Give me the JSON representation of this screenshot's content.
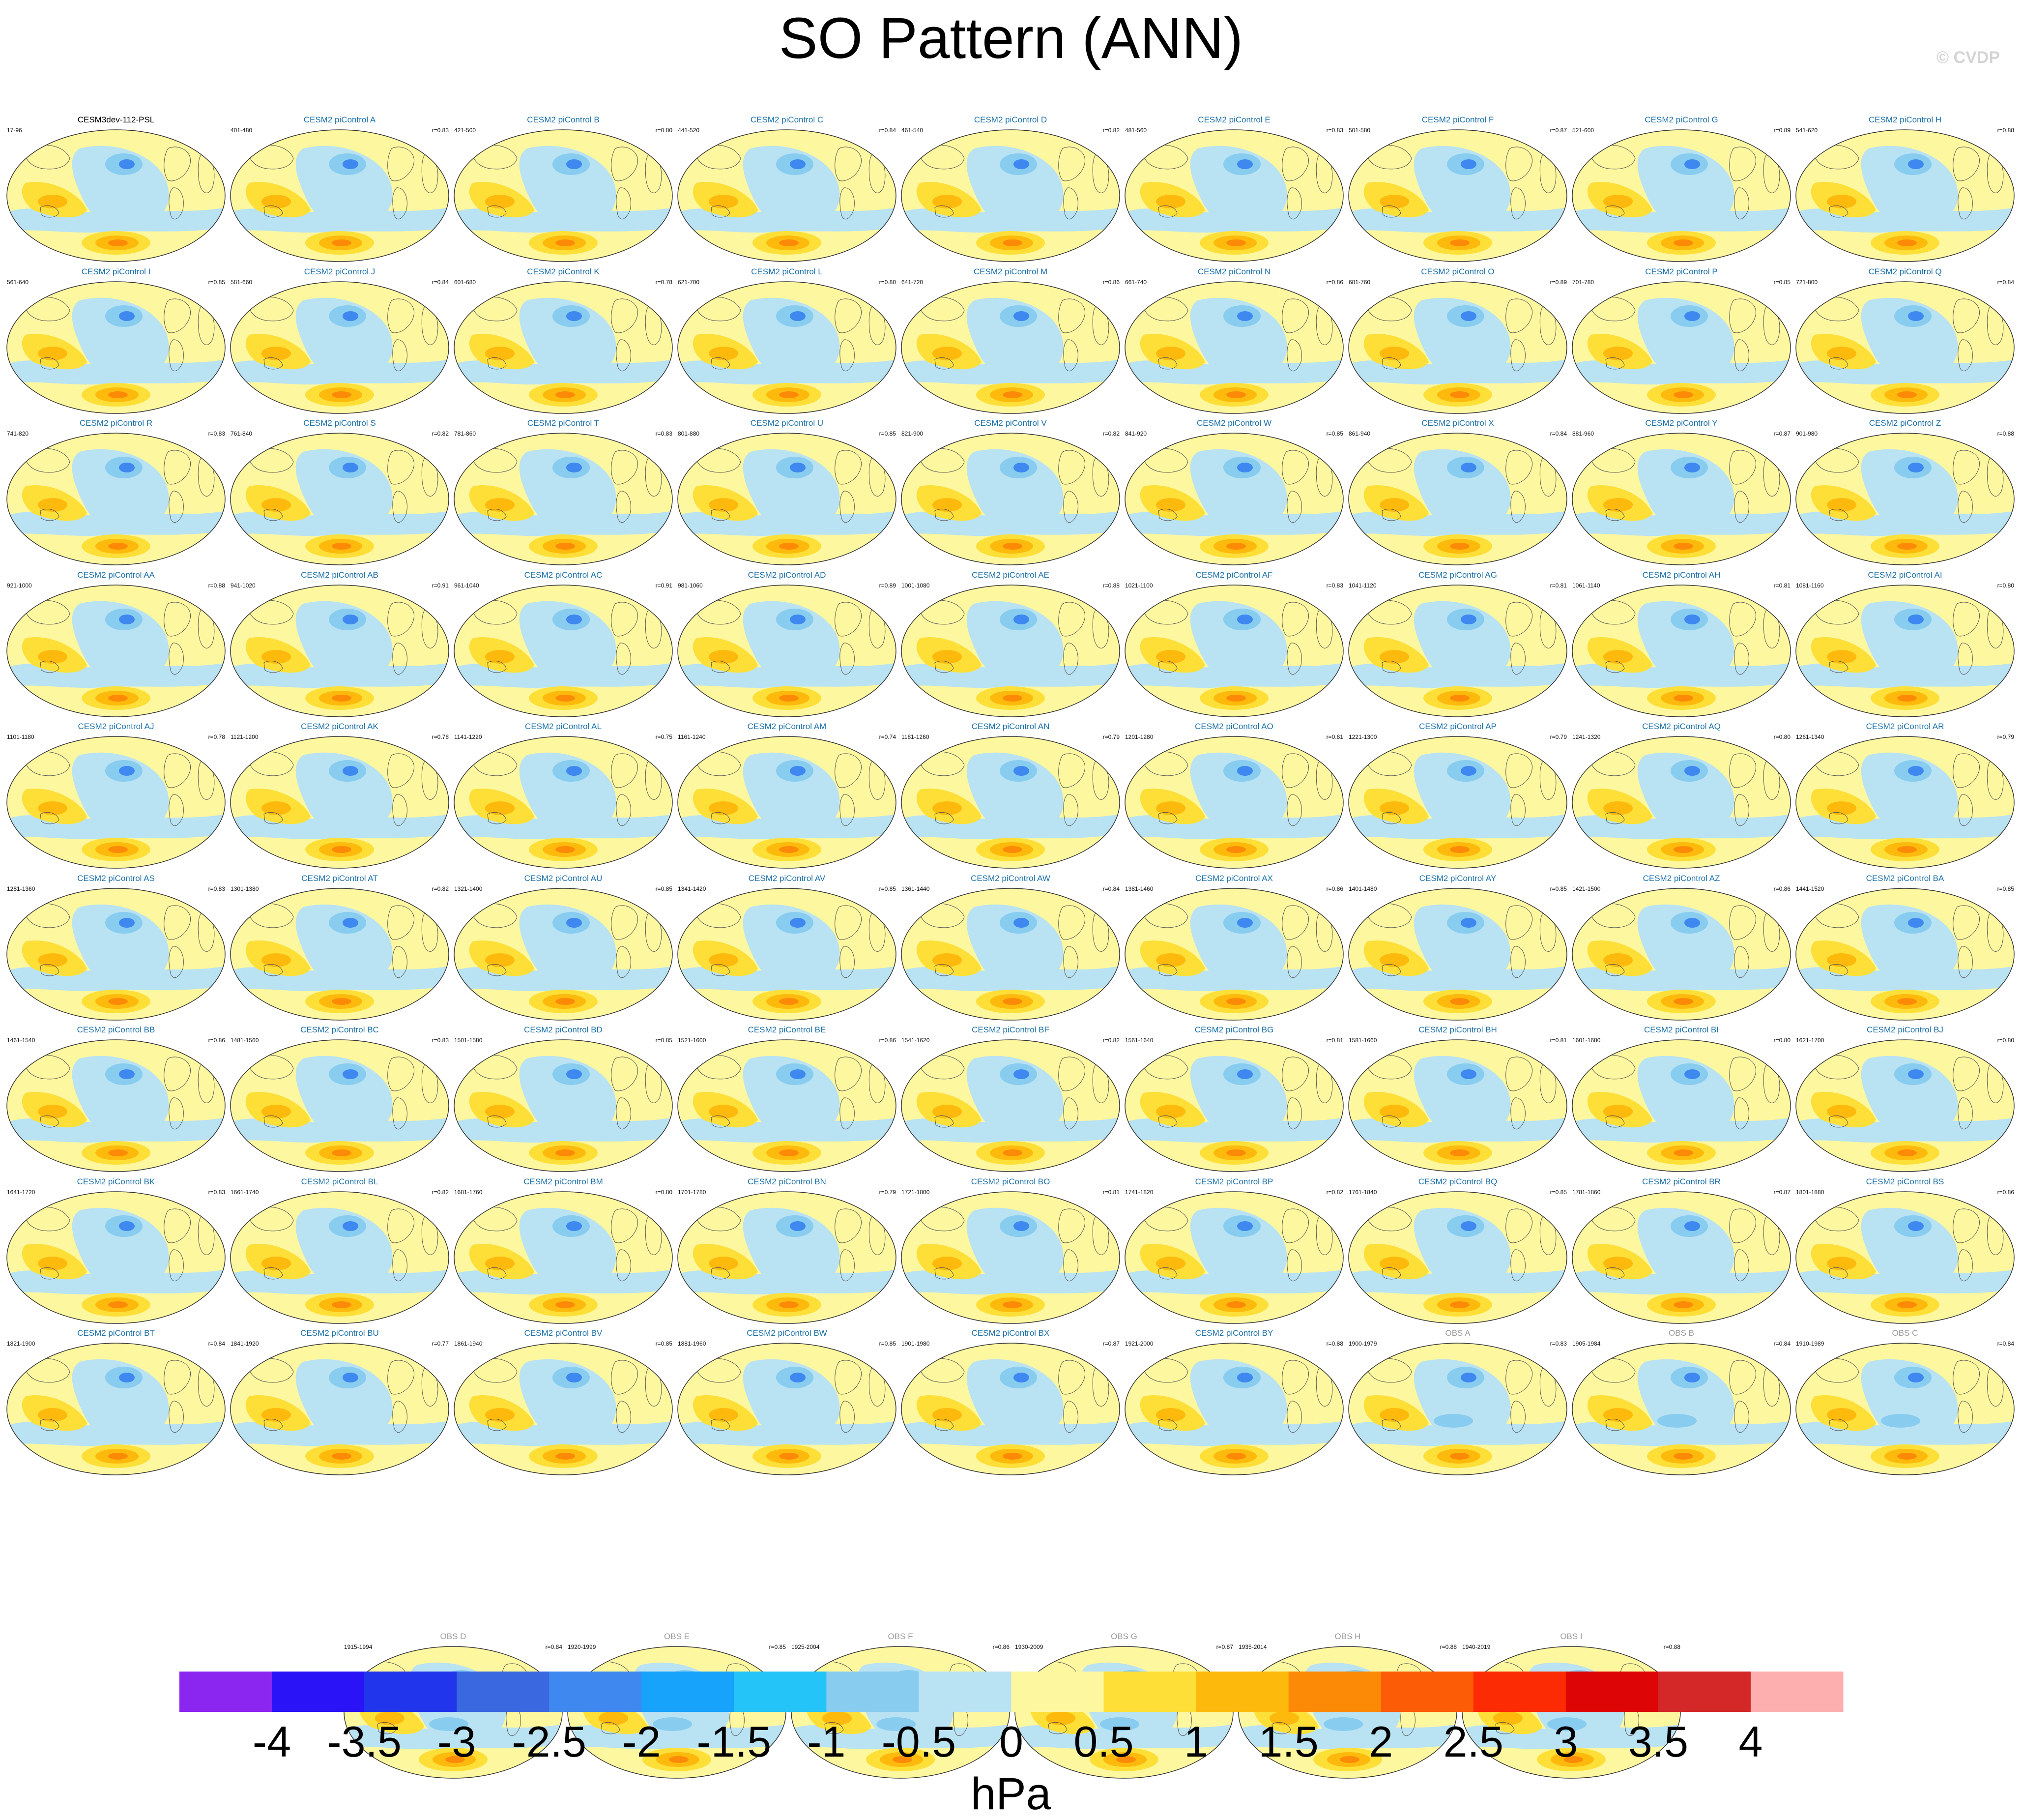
{
  "title": "SO Pattern (ANN)",
  "watermark": "© CVDP",
  "units": "hPa",
  "colorbar": {
    "ticks": [
      "-4",
      "-3.5",
      "-3",
      "-2.5",
      "-2",
      "-1.5",
      "-1",
      "-0.5",
      "0",
      "0.5",
      "1",
      "1.5",
      "2",
      "2.5",
      "3",
      "3.5",
      "4"
    ],
    "colors": [
      "#8b25f0",
      "#2a13f6",
      "#2035ec",
      "#3a68e0",
      "#3e88f0",
      "#17a2fb",
      "#24c3f8",
      "#88ccf0",
      "#b9e2f2",
      "#fdf7a0",
      "#fddf38",
      "#fdba0c",
      "#fd8a06",
      "#fd5c06",
      "#fd2b04",
      "#dd0505",
      "#d42828",
      "#fdafaf"
    ]
  },
  "chart_data": {
    "type": "heatmap",
    "title": "SO Pattern (ANN)",
    "colorbar_label": "hPa",
    "colorbar_range": [
      -4,
      4
    ],
    "colorbar_interval": 0.5,
    "panels": [
      {
        "name": "CESM3dev-112-PSL",
        "years": "17-96",
        "r": ""
      },
      {
        "name": "CESM2 piControl A",
        "years": "401-480",
        "r": "r=0.83"
      },
      {
        "name": "CESM2 piControl B",
        "years": "421-500",
        "r": "r=0.80"
      },
      {
        "name": "CESM2 piControl C",
        "years": "441-520",
        "r": "r=0.84"
      },
      {
        "name": "CESM2 piControl D",
        "years": "461-540",
        "r": "r=0.82"
      },
      {
        "name": "CESM2 piControl E",
        "years": "481-560",
        "r": "r=0.83"
      },
      {
        "name": "CESM2 piControl F",
        "years": "501-580",
        "r": "r=0.87"
      },
      {
        "name": "CESM2 piControl G",
        "years": "521-600",
        "r": "r=0.89"
      },
      {
        "name": "CESM2 piControl H",
        "years": "541-620",
        "r": "r=0.88"
      },
      {
        "name": "CESM2 piControl I",
        "years": "561-640",
        "r": "r=0.85"
      },
      {
        "name": "CESM2 piControl J",
        "years": "581-660",
        "r": "r=0.84"
      },
      {
        "name": "CESM2 piControl K",
        "years": "601-680",
        "r": "r=0.78"
      },
      {
        "name": "CESM2 piControl L",
        "years": "621-700",
        "r": "r=0.80"
      },
      {
        "name": "CESM2 piControl M",
        "years": "641-720",
        "r": "r=0.86"
      },
      {
        "name": "CESM2 piControl N",
        "years": "661-740",
        "r": "r=0.86"
      },
      {
        "name": "CESM2 piControl O",
        "years": "681-760",
        "r": "r=0.89"
      },
      {
        "name": "CESM2 piControl P",
        "years": "701-780",
        "r": "r=0.85"
      },
      {
        "name": "CESM2 piControl Q",
        "years": "721-800",
        "r": "r=0.84"
      },
      {
        "name": "CESM2 piControl R",
        "years": "741-820",
        "r": "r=0.83"
      },
      {
        "name": "CESM2 piControl S",
        "years": "761-840",
        "r": "r=0.82"
      },
      {
        "name": "CESM2 piControl T",
        "years": "781-860",
        "r": "r=0.83"
      },
      {
        "name": "CESM2 piControl U",
        "years": "801-880",
        "r": "r=0.85"
      },
      {
        "name": "CESM2 piControl V",
        "years": "821-900",
        "r": "r=0.82"
      },
      {
        "name": "CESM2 piControl W",
        "years": "841-920",
        "r": "r=0.85"
      },
      {
        "name": "CESM2 piControl X",
        "years": "861-940",
        "r": "r=0.84"
      },
      {
        "name": "CESM2 piControl Y",
        "years": "881-960",
        "r": "r=0.87"
      },
      {
        "name": "CESM2 piControl Z",
        "years": "901-980",
        "r": "r=0.88"
      },
      {
        "name": "CESM2 piControl AA",
        "years": "921-1000",
        "r": "r=0.88"
      },
      {
        "name": "CESM2 piControl AB",
        "years": "941-1020",
        "r": "r=0.91"
      },
      {
        "name": "CESM2 piControl AC",
        "years": "961-1040",
        "r": "r=0.91"
      },
      {
        "name": "CESM2 piControl AD",
        "years": "981-1060",
        "r": "r=0.89"
      },
      {
        "name": "CESM2 piControl AE",
        "years": "1001-1080",
        "r": "r=0.88"
      },
      {
        "name": "CESM2 piControl AF",
        "years": "1021-1100",
        "r": "r=0.83"
      },
      {
        "name": "CESM2 piControl AG",
        "years": "1041-1120",
        "r": "r=0.81"
      },
      {
        "name": "CESM2 piControl AH",
        "years": "1061-1140",
        "r": "r=0.81"
      },
      {
        "name": "CESM2 piControl AI",
        "years": "1081-1160",
        "r": "r=0.80"
      },
      {
        "name": "CESM2 piControl AJ",
        "years": "1101-1180",
        "r": "r=0.78"
      },
      {
        "name": "CESM2 piControl AK",
        "years": "1121-1200",
        "r": "r=0.78"
      },
      {
        "name": "CESM2 piControl AL",
        "years": "1141-1220",
        "r": "r=0.75"
      },
      {
        "name": "CESM2 piControl AM",
        "years": "1161-1240",
        "r": "r=0.74"
      },
      {
        "name": "CESM2 piControl AN",
        "years": "1181-1260",
        "r": "r=0.79"
      },
      {
        "name": "CESM2 piControl AO",
        "years": "1201-1280",
        "r": "r=0.81"
      },
      {
        "name": "CESM2 piControl AP",
        "years": "1221-1300",
        "r": "r=0.79"
      },
      {
        "name": "CESM2 piControl AQ",
        "years": "1241-1320",
        "r": "r=0.80"
      },
      {
        "name": "CESM2 piControl AR",
        "years": "1261-1340",
        "r": "r=0.79"
      },
      {
        "name": "CESM2 piControl AS",
        "years": "1281-1360",
        "r": "r=0.83"
      },
      {
        "name": "CESM2 piControl AT",
        "years": "1301-1380",
        "r": "r=0.82"
      },
      {
        "name": "CESM2 piControl AU",
        "years": "1321-1400",
        "r": "r=0.85"
      },
      {
        "name": "CESM2 piControl AV",
        "years": "1341-1420",
        "r": "r=0.85"
      },
      {
        "name": "CESM2 piControl AW",
        "years": "1361-1440",
        "r": "r=0.84"
      },
      {
        "name": "CESM2 piControl AX",
        "years": "1381-1460",
        "r": "r=0.86"
      },
      {
        "name": "CESM2 piControl AY",
        "years": "1401-1480",
        "r": "r=0.85"
      },
      {
        "name": "CESM2 piControl AZ",
        "years": "1421-1500",
        "r": "r=0.86"
      },
      {
        "name": "CESM2 piControl BA",
        "years": "1441-1520",
        "r": "r=0.85"
      },
      {
        "name": "CESM2 piControl BB",
        "years": "1461-1540",
        "r": "r=0.86"
      },
      {
        "name": "CESM2 piControl BC",
        "years": "1481-1560",
        "r": "r=0.83"
      },
      {
        "name": "CESM2 piControl BD",
        "years": "1501-1580",
        "r": "r=0.85"
      },
      {
        "name": "CESM2 piControl BE",
        "years": "1521-1600",
        "r": "r=0.86"
      },
      {
        "name": "CESM2 piControl BF",
        "years": "1541-1620",
        "r": "r=0.82"
      },
      {
        "name": "CESM2 piControl BG",
        "years": "1561-1640",
        "r": "r=0.81"
      },
      {
        "name": "CESM2 piControl BH",
        "years": "1581-1660",
        "r": "r=0.81"
      },
      {
        "name": "CESM2 piControl BI",
        "years": "1601-1680",
        "r": "r=0.80"
      },
      {
        "name": "CESM2 piControl BJ",
        "years": "1621-1700",
        "r": "r=0.80"
      },
      {
        "name": "CESM2 piControl BK",
        "years": "1641-1720",
        "r": "r=0.83"
      },
      {
        "name": "CESM2 piControl BL",
        "years": "1661-1740",
        "r": "r=0.82"
      },
      {
        "name": "CESM2 piControl BM",
        "years": "1681-1760",
        "r": "r=0.80"
      },
      {
        "name": "CESM2 piControl BN",
        "years": "1701-1780",
        "r": "r=0.79"
      },
      {
        "name": "CESM2 piControl BO",
        "years": "1721-1800",
        "r": "r=0.81"
      },
      {
        "name": "CESM2 piControl BP",
        "years": "1741-1820",
        "r": "r=0.82"
      },
      {
        "name": "CESM2 piControl BQ",
        "years": "1761-1840",
        "r": "r=0.85"
      },
      {
        "name": "CESM2 piControl BR",
        "years": "1781-1860",
        "r": "r=0.87"
      },
      {
        "name": "CESM2 piControl BS",
        "years": "1801-1880",
        "r": "r=0.86"
      },
      {
        "name": "CESM2 piControl BT",
        "years": "1821-1900",
        "r": "r=0.84"
      },
      {
        "name": "CESM2 piControl BU",
        "years": "1841-1920",
        "r": "r=0.77"
      },
      {
        "name": "CESM2 piControl BV",
        "years": "1861-1940",
        "r": "r=0.85"
      },
      {
        "name": "CESM2 piControl BW",
        "years": "1881-1960",
        "r": "r=0.85"
      },
      {
        "name": "CESM2 piControl BX",
        "years": "1901-1980",
        "r": "r=0.87"
      },
      {
        "name": "CESM2 piControl BY",
        "years": "1921-2000",
        "r": "r=0.88"
      },
      {
        "name": "OBS A",
        "years": "1900-1979",
        "r": "r=0.83"
      },
      {
        "name": "OBS B",
        "years": "1905-1984",
        "r": "r=0.84"
      },
      {
        "name": "OBS C",
        "years": "1910-1989",
        "r": "r=0.84"
      },
      {
        "name": "OBS D",
        "years": "1915-1994",
        "r": "r=0.84"
      },
      {
        "name": "OBS E",
        "years": "1920-1999",
        "r": "r=0.85"
      },
      {
        "name": "OBS F",
        "years": "1925-2004",
        "r": "r=0.86"
      },
      {
        "name": "OBS G",
        "years": "1930-2009",
        "r": "r=0.87"
      },
      {
        "name": "OBS H",
        "years": "1935-2014",
        "r": "r=0.88"
      },
      {
        "name": "OBS I",
        "years": "1940-2019",
        "r": "r=0.88"
      }
    ]
  }
}
